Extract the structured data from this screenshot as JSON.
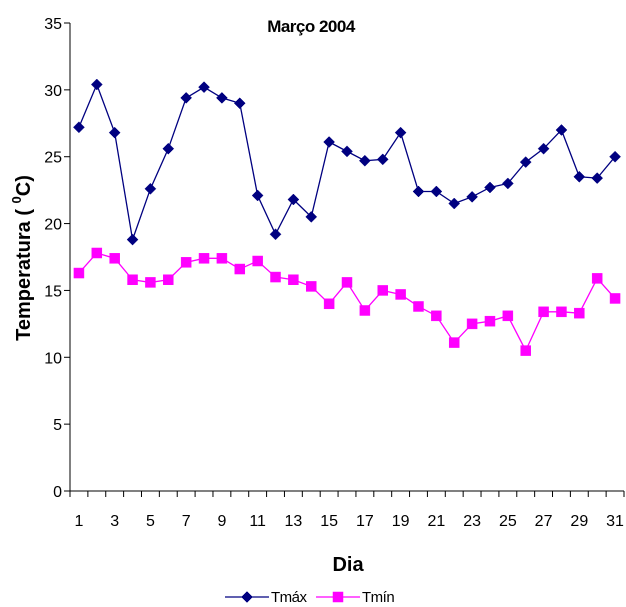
{
  "chart_data": {
    "type": "line",
    "title": "Março 2004",
    "xlabel": "Dia",
    "ylabel_main": "Temperatura ( ",
    "ylabel_sup": "0",
    "ylabel_end": "C)",
    "ylim": [
      0,
      35
    ],
    "yticks": [
      0,
      5,
      10,
      15,
      20,
      25,
      30,
      35
    ],
    "x": [
      1,
      2,
      3,
      4,
      5,
      6,
      7,
      8,
      9,
      10,
      11,
      12,
      13,
      14,
      15,
      16,
      17,
      18,
      19,
      20,
      21,
      22,
      23,
      24,
      25,
      26,
      27,
      28,
      29,
      30,
      31
    ],
    "xtick_labels": [
      1,
      3,
      5,
      7,
      9,
      11,
      13,
      15,
      17,
      19,
      21,
      23,
      25,
      27,
      29,
      31
    ],
    "grid": false,
    "legend_position": "bottom",
    "series": [
      {
        "name": "Tmáx",
        "color": "#000080",
        "marker": "diamond",
        "values": [
          27.2,
          30.4,
          26.8,
          18.8,
          22.6,
          25.6,
          29.4,
          30.2,
          29.4,
          29.0,
          22.1,
          19.2,
          21.8,
          20.5,
          26.1,
          25.4,
          24.7,
          24.8,
          26.8,
          22.4,
          22.4,
          21.5,
          22.0,
          22.7,
          23.0,
          24.6,
          25.6,
          27.0,
          23.5,
          23.4,
          25.0
        ]
      },
      {
        "name": "Tmín",
        "color": "#ff00ff",
        "marker": "square",
        "values": [
          16.3,
          17.8,
          17.4,
          15.8,
          15.6,
          15.8,
          17.1,
          17.4,
          17.4,
          16.6,
          17.2,
          16.0,
          15.8,
          15.3,
          14.0,
          15.6,
          13.5,
          15.0,
          14.7,
          13.8,
          13.1,
          11.1,
          12.5,
          12.7,
          13.1,
          10.5,
          13.4,
          13.4,
          13.3,
          15.9,
          14.4
        ]
      }
    ]
  }
}
